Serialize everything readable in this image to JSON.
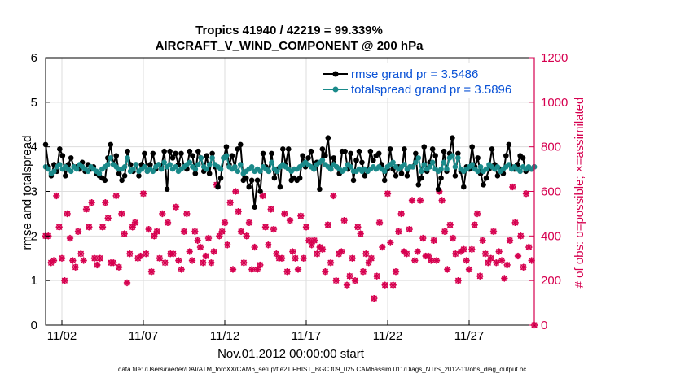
{
  "chart_data": {
    "type": "line",
    "title": "Tropics 41940 / 42219 = 99.339%",
    "subtitle": "AIRCRAFT_V_WIND_COMPONENT @ 200 hPa",
    "xlabel": "Nov.01,2012 00:00:00 start",
    "ylabel_left": "rmse and totalspread",
    "ylabel_right": "# of obs: o=possible; ×=assimilated",
    "x_tick_labels": [
      "11/02",
      "11/07",
      "11/12",
      "11/17",
      "11/22",
      "11/27"
    ],
    "x_tick_positions_days": [
      1,
      6,
      11,
      16,
      21,
      26
    ],
    "xlim_days": [
      0,
      30
    ],
    "ylim_left": [
      0,
      6
    ],
    "yticks_left": [
      "0",
      "1",
      "2",
      "3",
      "4",
      "5",
      "6"
    ],
    "ylim_right": [
      0,
      1200
    ],
    "yticks_right": [
      "0",
      "200",
      "400",
      "600",
      "800",
      "1000",
      "1200"
    ],
    "legend": [
      "rmse grand pr = 3.5486",
      "totalspread grand pr = 3.5896"
    ],
    "footer": "data file: /Users/raeder/DAI/ATM_forcXX/CAM6_setup/f.e21.FHIST_BGC.f09_025.CAM6assim.011/Diags_NTrS_2012-11/obs_diag_output.nc",
    "colors": {
      "rmse": "#000000",
      "spread": "#1a8a8a",
      "obs": "#d6004f",
      "legend_text": "#0a52d6",
      "right_axis": "#d6004f"
    },
    "series": [
      {
        "name": "rmse",
        "values": [
          4.05,
          3.55,
          3.35,
          3.6,
          3.45,
          3.95,
          3.8,
          3.35,
          3.6,
          3.75,
          3.55,
          3.55,
          3.5,
          3.65,
          3.45,
          3.6,
          3.5,
          3.55,
          3.4,
          3.35,
          3.3,
          3.25,
          3.75,
          4.05,
          3.6,
          3.8,
          3.4,
          3.25,
          3.35,
          3.9,
          3.6,
          3.45,
          3.6,
          3.35,
          3.6,
          3.85,
          3.45,
          3.6,
          3.85,
          3.5,
          3.6,
          3.55,
          3.9,
          3.05,
          3.9,
          3.75,
          3.85,
          3.6,
          3.85,
          3.55,
          3.5,
          3.9,
          3.8,
          3.4,
          3.9,
          3.75,
          3.45,
          3.8,
          3.4,
          3.85,
          3.55,
          3.1,
          3.3,
          3.75,
          4.0,
          3.6,
          3.8,
          3.55,
          3.95,
          4.05,
          3.25,
          3.3,
          3.1,
          3.25,
          2.65,
          3.25,
          3.0,
          3.85,
          3.55,
          3.45,
          3.85,
          3.3,
          3.5,
          3.1,
          3.95,
          3.6,
          3.95,
          3.25,
          3.3,
          3.25,
          3.3,
          3.8,
          3.55,
          3.75,
          3.9,
          3.5,
          3.65,
          3.05,
          3.95,
          3.8,
          4.2,
          3.5,
          3.75,
          3.55,
          3.4,
          3.9,
          3.9,
          3.5,
          3.85,
          3.25,
          3.7,
          3.9,
          3.65,
          3.35,
          3.45,
          3.9,
          3.7,
          3.8,
          3.85,
          3.6,
          3.25,
          3.5,
          3.95,
          3.5,
          3.35,
          3.55,
          3.4,
          3.95,
          3.35,
          3.55,
          3.55,
          3.85,
          3.15,
          3.3,
          4.0,
          3.45,
          3.65,
          3.95,
          3.8,
          3.05,
          3.3,
          3.9,
          3.45,
          3.85,
          4.2,
          3.35,
          3.85,
          3.45,
          3.1,
          3.55,
          3.5,
          4.0,
          3.55,
          3.75,
          3.4,
          3.15,
          3.3,
          3.5,
          3.95,
          3.6,
          3.35,
          3.5,
          3.4,
          3.8,
          4.05,
          3.55,
          3.5,
          3.6,
          3.8,
          3.75,
          3.45,
          3.5,
          3.5,
          3.55
        ]
      },
      {
        "name": "totalspread",
        "values": [
          3.55,
          3.5,
          3.4,
          3.45,
          3.55,
          3.6,
          3.5,
          3.55,
          3.5,
          3.45,
          3.55,
          3.5,
          3.6,
          3.55,
          3.5,
          3.45,
          3.55,
          3.5,
          3.45,
          3.4,
          3.5,
          3.55,
          3.6,
          3.75,
          3.6,
          3.55,
          3.5,
          3.5,
          3.55,
          3.75,
          3.45,
          3.5,
          3.6,
          3.45,
          3.5,
          3.55,
          3.45,
          3.5,
          3.45,
          3.55,
          3.6,
          3.5,
          3.65,
          3.55,
          3.6,
          3.5,
          3.55,
          3.45,
          3.5,
          3.55,
          3.6,
          3.65,
          3.55,
          3.5,
          3.6,
          3.75,
          3.55,
          3.5,
          3.6,
          3.75,
          3.6,
          3.55,
          3.5,
          3.75,
          3.8,
          3.55,
          3.5,
          3.55,
          3.45,
          3.6,
          3.4,
          3.45,
          3.5,
          3.55,
          3.45,
          3.5,
          3.45,
          3.55,
          3.5,
          3.45,
          3.65,
          3.5,
          3.45,
          3.55,
          3.6,
          3.55,
          3.5,
          3.45,
          3.5,
          3.5,
          3.55,
          3.6,
          3.65,
          3.6,
          3.55,
          3.5,
          3.6,
          3.65,
          3.7,
          3.6,
          3.55,
          3.5,
          3.6,
          3.55,
          3.5,
          3.45,
          3.5,
          3.6,
          3.55,
          3.45,
          3.45,
          3.5,
          3.45,
          3.5,
          3.45,
          3.5,
          3.55,
          3.5,
          3.55,
          3.5,
          3.45,
          3.55,
          3.6,
          3.65,
          3.55,
          3.5,
          3.55,
          3.6,
          3.5,
          3.55,
          3.55,
          3.65,
          3.75,
          3.45,
          3.6,
          3.5,
          3.55,
          3.65,
          3.5,
          3.45,
          3.5,
          3.65,
          3.5,
          3.75,
          3.8,
          3.55,
          3.75,
          3.5,
          3.45,
          3.5,
          3.55,
          3.6,
          3.5,
          3.45,
          3.55,
          3.45,
          3.5,
          3.6,
          3.55,
          3.5,
          3.55,
          3.45,
          3.5,
          3.55,
          3.6,
          3.5,
          3.55,
          3.5,
          3.45,
          3.55,
          3.5,
          3.55,
          3.5,
          3.55
        ]
      },
      {
        "name": "obs_assimilated",
        "values": [
          400,
          400,
          280,
          290,
          580,
          440,
          300,
          200,
          500,
          390,
          290,
          260,
          420,
          320,
          290,
          520,
          440,
          550,
          300,
          270,
          300,
          440,
          550,
          480,
          280,
          280,
          580,
          260,
          500,
          410,
          190,
          320,
          440,
          460,
          300,
          310,
          590,
          320,
          430,
          240,
          400,
          420,
          300,
          500,
          280,
          460,
          320,
          320,
          530,
          290,
          250,
          420,
          500,
          330,
          290,
          420,
          380,
          350,
          280,
          310,
          390,
          280,
          330,
          630,
          400,
          420,
          460,
          360,
          550,
          250,
          600,
          510,
          420,
          280,
          400,
          460,
          250,
          350,
          250,
          270,
          580,
          440,
          360,
          520,
          430,
          320,
          300,
          300,
          500,
          240,
          470,
          330,
          300,
          250,
          490,
          300,
          440,
          380,
          360,
          380,
          320,
          350,
          340,
          240,
          450,
          280,
          580,
          200,
          320,
          330,
          470,
          180,
          220,
          300,
          200,
          440,
          410,
          240,
          320,
          280,
          300,
          120,
          220,
          460,
          350,
          180,
          590,
          370,
          180,
          240,
          420,
          500,
          330,
          320,
          430,
          560,
          290,
          330,
          560,
          390,
          310,
          310,
          290,
          380,
          290,
          600,
          560,
          420,
          250,
          450,
          390,
          320,
          200,
          330,
          340,
          290,
          250,
          340,
          450,
          500,
          220,
          380,
          320,
          280,
          300,
          420,
          280,
          330,
          290,
          210,
          270,
          380,
          620,
          460,
          310,
          400,
          260,
          590,
          350,
          290,
          0
        ]
      },
      {
        "name": "obs_possible",
        "values": [
          400,
          400,
          280,
          290,
          580,
          440,
          300,
          200,
          500,
          390,
          290,
          260,
          420,
          320,
          290,
          520,
          440,
          550,
          300,
          270,
          300,
          440,
          550,
          480,
          280,
          280,
          580,
          260,
          500,
          410,
          190,
          320,
          440,
          460,
          300,
          310,
          590,
          320,
          430,
          240,
          400,
          420,
          300,
          500,
          280,
          460,
          320,
          320,
          530,
          290,
          250,
          420,
          500,
          330,
          290,
          420,
          380,
          350,
          280,
          310,
          390,
          280,
          330,
          630,
          400,
          420,
          460,
          360,
          550,
          250,
          600,
          510,
          420,
          280,
          400,
          460,
          250,
          350,
          250,
          270,
          580,
          440,
          360,
          520,
          430,
          320,
          300,
          300,
          500,
          240,
          470,
          330,
          300,
          250,
          490,
          300,
          440,
          380,
          360,
          380,
          320,
          350,
          340,
          240,
          450,
          280,
          580,
          200,
          320,
          330,
          470,
          180,
          220,
          300,
          200,
          440,
          410,
          240,
          320,
          280,
          300,
          120,
          220,
          460,
          350,
          180,
          590,
          370,
          180,
          240,
          420,
          500,
          330,
          320,
          430,
          560,
          290,
          330,
          560,
          390,
          310,
          310,
          290,
          380,
          290,
          600,
          560,
          420,
          250,
          450,
          390,
          320,
          200,
          330,
          340,
          290,
          250,
          340,
          450,
          500,
          220,
          380,
          320,
          280,
          300,
          420,
          280,
          330,
          290,
          210,
          270,
          380,
          620,
          460,
          310,
          400,
          260,
          590,
          350,
          290,
          0
        ]
      }
    ]
  }
}
